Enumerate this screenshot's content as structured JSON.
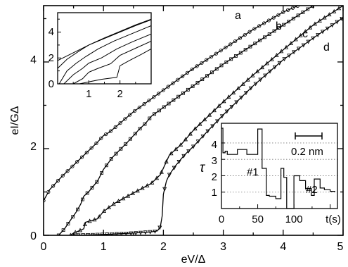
{
  "chart_data": [
    {
      "type": "line",
      "xlabel": "eV/Δ",
      "ylabel": "eI/GΔ",
      "xlim": [
        0,
        5
      ],
      "ylim": [
        0,
        5.3
      ],
      "xticks": [
        "0",
        "1",
        "2",
        "3",
        "4",
        "5"
      ],
      "yticks": [
        "0",
        "2",
        "4"
      ],
      "grid": false,
      "series": [
        {
          "name": "a",
          "x": [
            0,
            0.1,
            0.3,
            0.6,
            0.9,
            1.0,
            1.1,
            1.5,
            2.0,
            2.5,
            3.0,
            3.5,
            4.0,
            4.5,
            4.6
          ],
          "y": [
            0.8,
            1.05,
            1.35,
            1.75,
            2.15,
            2.3,
            2.38,
            2.85,
            3.35,
            3.85,
            4.3,
            4.75,
            5.15,
            5.45,
            5.5
          ]
        },
        {
          "name": "b",
          "x": [
            0.25,
            0.35,
            0.45,
            0.55,
            0.62,
            0.67,
            0.75,
            0.9,
            1.0,
            1.15,
            1.4,
            1.6,
            1.7,
            1.8,
            2.0,
            2.5,
            3.0,
            3.5,
            4.0,
            4.5,
            4.6
          ],
          "y": [
            0,
            0.15,
            0.35,
            0.55,
            0.72,
            0.9,
            1.0,
            1.25,
            1.52,
            1.8,
            2.15,
            2.45,
            2.58,
            2.75,
            2.95,
            3.45,
            3.95,
            4.4,
            4.85,
            5.3,
            5.38
          ]
        },
        {
          "name": "c",
          "x": [
            0.45,
            0.5,
            0.67,
            0.7,
            0.9,
            1.0,
            1.1,
            1.2,
            1.4,
            1.6,
            1.8,
            1.95,
            2.0,
            2.1,
            2.3,
            2.5,
            3.0,
            3.5,
            4.0,
            4.5,
            5.0
          ],
          "y": [
            0,
            0.05,
            0.15,
            0.3,
            0.38,
            0.55,
            0.65,
            0.75,
            0.9,
            1.05,
            1.2,
            1.4,
            1.55,
            1.85,
            2.1,
            2.42,
            3.08,
            3.7,
            4.28,
            4.85,
            5.3
          ]
        },
        {
          "name": "d",
          "x": [
            0.5,
            1.0,
            1.5,
            1.8,
            1.9,
            1.95,
            1.98,
            2.0,
            2.05,
            2.1,
            2.2,
            2.35,
            2.5,
            2.75,
            3.0,
            3.5,
            4.0,
            4.5,
            5.0
          ],
          "y": [
            0,
            0.02,
            0.05,
            0.08,
            0.1,
            0.2,
            0.45,
            0.95,
            1.25,
            1.4,
            1.6,
            1.85,
            2.05,
            2.42,
            2.78,
            3.45,
            4.05,
            4.55,
            5.02
          ]
        }
      ],
      "labels": [
        "a",
        "b",
        "c",
        "d"
      ]
    },
    {
      "type": "line",
      "inset": "top-left",
      "xlim": [
        0,
        3
      ],
      "ylim": [
        0,
        5.5
      ],
      "xticks": [
        "1",
        "2"
      ],
      "yticks": [
        "0",
        "2",
        "4"
      ],
      "series": [
        {
          "x": [
            0,
            0.5,
            1,
            1.5,
            2,
            2.5,
            3
          ],
          "y": [
            1.8,
            2.4,
            3.0,
            3.55,
            4.05,
            4.55,
            5.0
          ]
        },
        {
          "x": [
            0,
            0.3,
            0.7,
            1.0,
            1.5,
            2.0,
            2.5,
            3
          ],
          "y": [
            1.2,
            1.9,
            2.55,
            3.0,
            3.5,
            4.0,
            4.5,
            4.95
          ]
        },
        {
          "x": [
            0.05,
            0.3,
            0.6,
            0.9,
            1.3,
            1.8,
            2.4,
            3
          ],
          "y": [
            0.0,
            1.0,
            1.6,
            2.1,
            2.7,
            3.3,
            3.9,
            4.5
          ]
        },
        {
          "x": [
            0.2,
            0.5,
            0.8,
            1.0,
            1.4,
            1.9,
            2.4,
            3
          ],
          "y": [
            0.0,
            0.7,
            1.2,
            1.6,
            2.0,
            2.7,
            3.25,
            3.85
          ]
        },
        {
          "x": [
            0.5,
            0.8,
            1.0,
            1.3,
            1.7,
            2.0,
            2.5,
            3
          ],
          "y": [
            0.0,
            0.4,
            0.9,
            1.2,
            1.55,
            2.2,
            2.75,
            3.3
          ]
        },
        {
          "x": [
            0.7,
            1.0,
            1.4,
            1.9,
            2.0,
            2.3,
            2.7,
            3
          ],
          "y": [
            0.0,
            0.15,
            0.35,
            0.5,
            1.4,
            1.8,
            2.3,
            2.7
          ]
        }
      ]
    },
    {
      "type": "line",
      "inset": "bottom-right",
      "xlabel": "t(s)",
      "ylabel": "τ",
      "xlim": [
        0,
        160
      ],
      "ylim": [
        0,
        5.2
      ],
      "xticks": [
        "0",
        "50",
        "100"
      ],
      "yticks": [
        "1",
        "2",
        "3",
        "4"
      ],
      "grid": true,
      "annotations": [
        "#1",
        "#2"
      ],
      "scalebar_label": "0.2 nm",
      "series": [
        {
          "x": [
            0,
            2,
            2,
            5,
            5,
            8,
            8,
            22,
            22,
            35,
            35,
            50,
            50,
            56,
            56,
            62,
            62,
            66,
            66,
            75,
            75,
            82,
            82,
            86,
            86,
            90,
            90,
            100,
            100,
            108,
            108,
            116,
            116,
            124,
            124,
            128,
            128,
            136,
            136,
            142,
            142,
            150,
            150,
            157
          ],
          "y": [
            4.9,
            4.9,
            3.4,
            3.4,
            3.5,
            3.5,
            3.3,
            3.3,
            3.6,
            3.6,
            3.3,
            3.3,
            4.85,
            4.85,
            2.45,
            2.45,
            0.8,
            0.8,
            0.75,
            0.75,
            0.6,
            0.6,
            2.45,
            2.45,
            1.9,
            1.9,
            0.0,
            0.0,
            2.0,
            2.0,
            1.7,
            1.7,
            1.2,
            1.2,
            0.8,
            0.8,
            1.8,
            1.8,
            1.25,
            1.25,
            1.15,
            1.15,
            1.05,
            1.05
          ]
        }
      ]
    }
  ]
}
